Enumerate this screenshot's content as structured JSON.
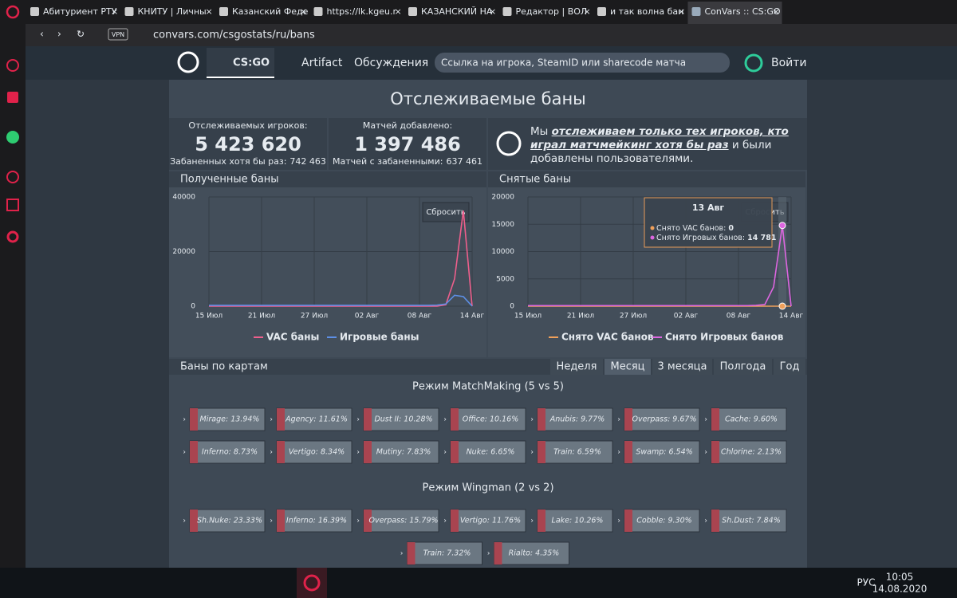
{
  "browser": {
    "tabs": [
      "Абитуриент РТУ",
      "КНИТУ | Личны",
      "Казанский Феде",
      "https://lk.kgeu.r",
      "КАЗАНСКИЙ НА",
      "Редактор | ВОЛ",
      "и так волна бан",
      "ConVars :: CS:GO"
    ],
    "active_tab": 7,
    "vpn": "VPN",
    "address": "convars.com/csgostats/ru/bans"
  },
  "nav": {
    "game": "CS:GO",
    "artifact": "Artifact",
    "discussions": "Обсуждения",
    "search_placeholder": "Ссылка на игрока, SteamID или sharecode матча",
    "login": "Войти"
  },
  "page": {
    "title": "Отслеживаемые баны",
    "stats": [
      {
        "label": "Отслеживаемых игроков:",
        "value": "5 423 620",
        "sub_label": "Забаненных хотя бы раз:",
        "sub_value": "742 463"
      },
      {
        "label": "Матчей добавлено:",
        "value": "1 397 486",
        "sub_label": "Матчей с забаненными:",
        "sub_value": "637 461"
      }
    ],
    "note": {
      "pre": "Мы",
      "link": "отслеживаем только тех игроков, кто играл матчмейкинг хотя бы раз",
      "post": "и были добавлены пользователями."
    }
  },
  "chart_data": [
    {
      "type": "line",
      "title": "Полученные баны",
      "reset_label": "Сбросить",
      "categories": [
        "15 Июл",
        null,
        null,
        null,
        null,
        null,
        "21 Июл",
        null,
        null,
        null,
        null,
        null,
        "27 Июл",
        null,
        null,
        null,
        null,
        null,
        "02 Авг",
        null,
        null,
        null,
        null,
        null,
        "08 Авг",
        null,
        null,
        null,
        null,
        null,
        "14 Авг"
      ],
      "series": [
        {
          "name": "VAC баны",
          "color": "#ee5f8c",
          "values": [
            0,
            0,
            0,
            0,
            0,
            0,
            0,
            0,
            0,
            0,
            0,
            0,
            0,
            0,
            0,
            0,
            0,
            0,
            0,
            0,
            0,
            0,
            0,
            0,
            0,
            0,
            0,
            500,
            10000,
            35000,
            0
          ]
        },
        {
          "name": "Игровые баны",
          "color": "#5d8fe6",
          "values": [
            300,
            300,
            300,
            300,
            300,
            300,
            300,
            300,
            300,
            300,
            300,
            300,
            300,
            300,
            300,
            300,
            300,
            300,
            300,
            300,
            300,
            300,
            300,
            300,
            300,
            300,
            400,
            800,
            4000,
            3500,
            0
          ]
        }
      ],
      "ylim": [
        0,
        40000
      ],
      "yticks": [
        0,
        20000,
        40000
      ]
    },
    {
      "type": "line",
      "title": "Снятые баны",
      "reset_label": "Сбросить",
      "categories": [
        "15 Июл",
        null,
        null,
        null,
        null,
        null,
        "21 Июл",
        null,
        null,
        null,
        null,
        null,
        "27 Июл",
        null,
        null,
        null,
        null,
        null,
        "02 Авг",
        null,
        null,
        null,
        null,
        null,
        "08 Авг",
        null,
        null,
        null,
        null,
        null,
        "14 Авг"
      ],
      "series": [
        {
          "name": "Снято VAC банов",
          "color": "#f0a05a",
          "values": [
            0,
            0,
            0,
            0,
            0,
            0,
            0,
            0,
            0,
            0,
            0,
            0,
            0,
            0,
            0,
            0,
            0,
            0,
            0,
            0,
            0,
            0,
            0,
            0,
            0,
            0,
            0,
            0,
            0,
            0,
            0
          ]
        },
        {
          "name": "Снято Игровых банов",
          "color": "#dd66e0",
          "values": [
            100,
            100,
            100,
            100,
            100,
            100,
            100,
            100,
            100,
            100,
            100,
            100,
            100,
            100,
            100,
            100,
            100,
            100,
            100,
            100,
            100,
            100,
            100,
            100,
            100,
            100,
            150,
            300,
            3500,
            14781,
            0
          ]
        }
      ],
      "ylim": [
        0,
        20000
      ],
      "yticks": [
        0,
        5000,
        10000,
        15000,
        20000
      ],
      "tooltip": {
        "index": 29,
        "title": "13 Авг",
        "items": [
          {
            "label": "Снято VAC банов:",
            "value": "0"
          },
          {
            "label": "Снято Игровых банов:",
            "value": "14 781"
          }
        ]
      }
    }
  ],
  "maps": {
    "title": "Баны по картам",
    "periods": [
      "Неделя",
      "Месяц",
      "3 месяца",
      "Полгода",
      "Год"
    ],
    "active_period": 1,
    "modes": [
      {
        "title": "Режим MatchMaking (5 vs 5)",
        "maps": [
          "Mirage: 13.94%",
          "Agency: 11.61%",
          "Dust II: 10.28%",
          "Office: 10.16%",
          "Anubis: 9.77%",
          "Overpass: 9.67%",
          "Cache: 9.60%",
          "Inferno: 8.73%",
          "Vertigo: 8.34%",
          "Mutiny: 7.83%",
          "Nuke: 6.65%",
          "Train: 6.59%",
          "Swamp: 6.54%",
          "Chlorine: 2.13%"
        ]
      },
      {
        "title": "Режим Wingman (2 vs 2)",
        "maps": [
          "Sh.Nuke: 23.33%",
          "Inferno: 16.39%",
          "Overpass: 15.79%",
          "Vertigo: 11.76%",
          "Lake: 10.26%",
          "Cobble: 9.30%",
          "Sh.Dust: 7.84%",
          "Train: 7.32%",
          "Rialto: 4.35%"
        ]
      }
    ]
  },
  "taskbar": {
    "lang": "РУС",
    "time": "10:05",
    "date": "14.08.2020"
  }
}
